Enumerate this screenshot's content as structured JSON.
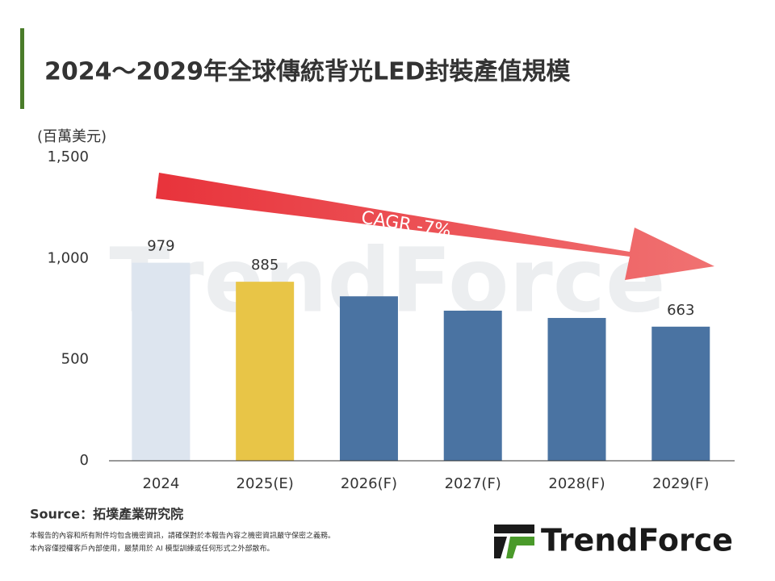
{
  "chart_data": {
    "type": "bar",
    "title": "2024～2029年全球傳統背光LED封裝產值規模",
    "y_axis_label": "(百萬美元)",
    "categories": [
      "2024",
      "2025(E)",
      "2026(F)",
      "2027(F)",
      "2028(F)",
      "2029(F)"
    ],
    "values": [
      979,
      885,
      813,
      742,
      706,
      663
    ],
    "value_labels": [
      "979",
      "885",
      null,
      null,
      null,
      "663"
    ],
    "colors": [
      "#dde5ef",
      "#e8c547",
      "#4a73a2",
      "#4a73a2",
      "#4a73a2",
      "#4a73a2"
    ],
    "ylim": [
      0,
      1500
    ],
    "yticks": [
      0,
      500,
      {
        "value": 1000,
        "label": "1,000"
      },
      {
        "value": 1500,
        "label": "1,500"
      }
    ],
    "grid": false,
    "annotation": "CAGR -7%",
    "watermark": "TrendForce",
    "source": "Source：拓墣產業研究院",
    "footnotes": [
      "本報告的內容和所有附件均包含機密資訊，請確保對於本報告內容之機密資訊嚴守保密之義務。",
      "本內容僅授權客戶內部使用，嚴禁用於 AI 模型訓練或任何形式之外部散布。"
    ],
    "logo": "TrendForce"
  }
}
